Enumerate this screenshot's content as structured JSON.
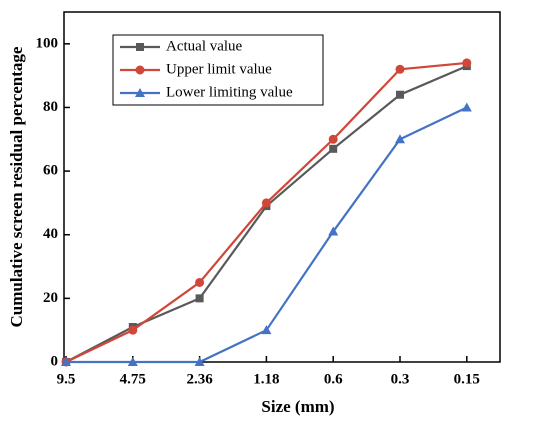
{
  "chart_data": {
    "type": "line",
    "x_label": "Size (mm)",
    "y_label": "Cumulative screen residual percentage",
    "categories": [
      "9.5",
      "4.75",
      "2.36",
      "1.18",
      "0.6",
      "0.3",
      "0.15"
    ],
    "series": [
      {
        "name": "Actual value",
        "color": "#595959",
        "marker": "square",
        "values": [
          0,
          11,
          20,
          49,
          67,
          84,
          93
        ]
      },
      {
        "name": "Upper limit value",
        "color": "#d0473a",
        "marker": "circle",
        "values": [
          0,
          10,
          25,
          50,
          70,
          92,
          94
        ]
      },
      {
        "name": "Lower limiting value",
        "color": "#4472c4",
        "marker": "triangle",
        "values": [
          0,
          0,
          0,
          10,
          41,
          70,
          80
        ]
      }
    ],
    "ylim": [
      0,
      110
    ],
    "yticks": [
      0,
      20,
      40,
      60,
      80,
      100
    ],
    "legend": "upper-left"
  }
}
